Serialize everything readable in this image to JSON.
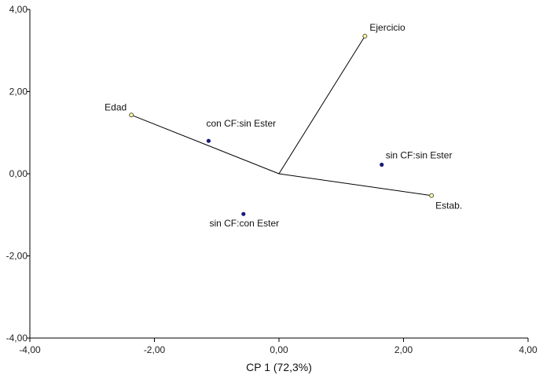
{
  "chart_data": {
    "type": "scatter",
    "subtype": "biplot",
    "xlabel": "CP 1 (72,3%)",
    "ylabel": "",
    "xlim": [
      -4,
      4
    ],
    "ylim": [
      -4,
      4
    ],
    "xticks": [
      "-4,00",
      "-2,00",
      "0,00",
      "2,00",
      "4,00"
    ],
    "yticks": [
      "-4,00",
      "-2,00",
      "0,00",
      "2,00",
      "4,00"
    ],
    "grid": false,
    "series": [
      {
        "name": "",
        "marker": "filled-circle",
        "color": "#1a1a7a",
        "points": [
          {
            "label": "con CF:sin Ester",
            "x": -1.13,
            "y": 0.8
          },
          {
            "label": "sin CF:sin Ester",
            "x": 1.65,
            "y": 0.22
          },
          {
            "label": "sin CF:con Ester",
            "x": -0.57,
            "y": -0.98
          }
        ]
      },
      {
        "name": "",
        "marker": "open-circle",
        "color": "#c8c820",
        "vectors_from_origin": true,
        "points": [
          {
            "label": "Edad",
            "x": -2.37,
            "y": 1.43
          },
          {
            "label": "Ejercicio",
            "x": 1.38,
            "y": 3.35
          },
          {
            "label": "Estab.",
            "x": 2.45,
            "y": -0.53
          }
        ]
      }
    ]
  }
}
